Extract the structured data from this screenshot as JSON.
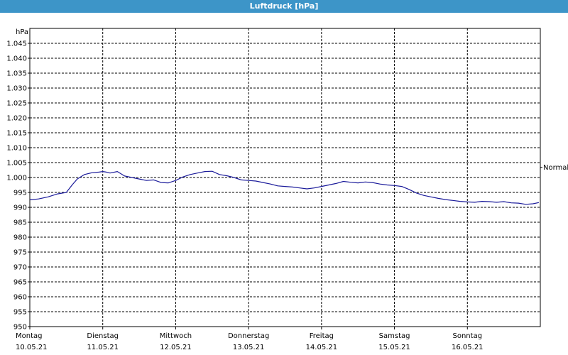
{
  "window": {
    "title": "Luftdruck [hPa]"
  },
  "chart_data": {
    "type": "line",
    "title": "Luftdruck [hPa]",
    "ylabel": "hPa",
    "ylim": [
      950,
      1050
    ],
    "yticks": [
      "950",
      "955",
      "960",
      "965",
      "970",
      "975",
      "980",
      "985",
      "990",
      "995",
      "1.000",
      "1.005",
      "1.010",
      "1.015",
      "1.020",
      "1.025",
      "1.030",
      "1.035",
      "1.040",
      "1.045"
    ],
    "grid": true,
    "reference_line": {
      "label": "Normal",
      "value": 1003.4
    },
    "x_range_days": [
      0,
      7
    ],
    "days": [
      {
        "day": "Montag",
        "date": "10.05.21"
      },
      {
        "day": "Dienstag",
        "date": "11.05.21"
      },
      {
        "day": "Mittwoch",
        "date": "12.05.21"
      },
      {
        "day": "Donnerstag",
        "date": "13.05.21"
      },
      {
        "day": "Freitag",
        "date": "14.05.21"
      },
      {
        "day": "Samstag",
        "date": "15.05.21"
      },
      {
        "day": "Sonntag",
        "date": "16.05.21"
      }
    ],
    "series": [
      {
        "color": "#1a1a9a",
        "x": [
          0.0,
          0.12,
          0.25,
          0.38,
          0.5,
          0.58,
          0.65,
          0.75,
          0.85,
          0.95,
          1.0,
          1.05,
          1.1,
          1.2,
          1.3,
          1.4,
          1.5,
          1.6,
          1.7,
          1.8,
          1.9,
          2.0,
          2.1,
          2.2,
          2.3,
          2.4,
          2.5,
          2.6,
          2.7,
          2.8,
          2.9,
          3.0,
          3.1,
          3.2,
          3.3,
          3.4,
          3.5,
          3.6,
          3.7,
          3.8,
          3.9,
          4.0,
          4.1,
          4.2,
          4.3,
          4.4,
          4.5,
          4.6,
          4.7,
          4.8,
          4.9,
          5.0,
          5.1,
          5.2,
          5.3,
          5.4,
          5.5,
          5.6,
          5.7,
          5.8,
          5.9,
          6.0,
          6.1,
          6.2,
          6.3,
          6.4,
          6.5,
          6.6,
          6.7,
          6.8,
          6.9,
          6.98
        ],
        "y": [
          992.5,
          992.8,
          993.5,
          994.5,
          995.0,
          997.5,
          999.5,
          1001.0,
          1001.6,
          1001.8,
          1002.0,
          1001.8,
          1001.5,
          1002.0,
          1000.5,
          1000.0,
          999.5,
          999.0,
          999.2,
          998.3,
          998.2,
          999.0,
          1000.2,
          1001.0,
          1001.5,
          1002.0,
          1002.1,
          1001.0,
          1000.6,
          1000.0,
          999.2,
          999.0,
          998.8,
          998.3,
          997.8,
          997.2,
          997.0,
          996.8,
          996.5,
          996.2,
          996.5,
          997.0,
          997.5,
          998.0,
          998.7,
          998.4,
          998.2,
          998.5,
          998.3,
          997.8,
          997.5,
          997.3,
          997.0,
          996.0,
          994.8,
          994.0,
          993.5,
          993.0,
          992.6,
          992.3,
          992.0,
          991.8,
          991.7,
          992.0,
          991.9,
          991.7,
          991.9,
          991.5,
          991.4,
          991.0,
          991.2,
          991.6
        ]
      }
    ]
  }
}
